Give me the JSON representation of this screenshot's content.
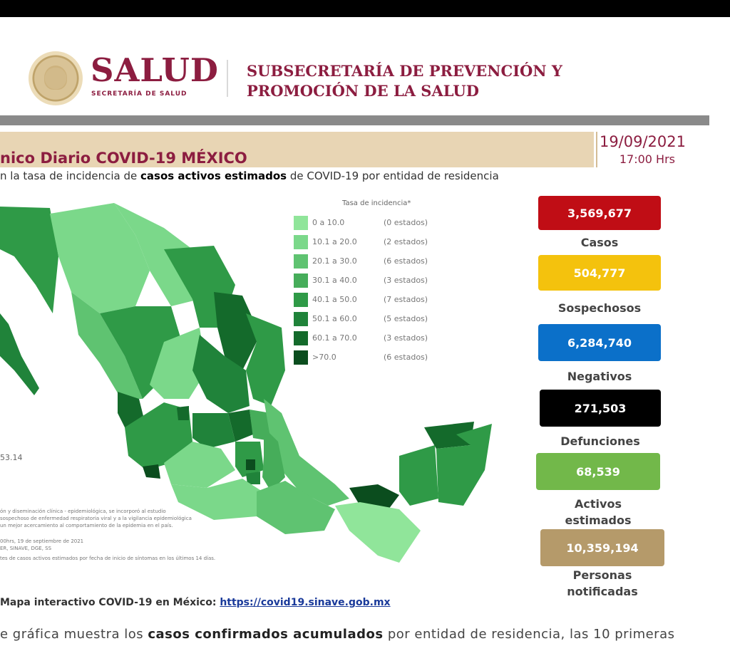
{
  "header": {
    "logo_text": "SALUD",
    "logo_subtext": "SECRETARÍA DE SALUD",
    "subsecretaria_line1": "SUBSECRETARÍA DE PREVENCIÓN Y",
    "subsecretaria_line2": "PROMOCIÓN DE LA SALUD"
  },
  "report": {
    "title": "nico Diario COVID-19 MÉXICO",
    "date": "19/09/2021",
    "time": "17:00 Hrs",
    "subtitle_pre": "n la tasa de incidencia de ",
    "subtitle_bold": "casos activos estimados",
    "subtitle_post": " de COVID-19 por entidad de residencia"
  },
  "legend": {
    "title": "Tasa de incidencia*",
    "items": [
      {
        "range": "0   a  10.0",
        "count": "(0 estados)",
        "color": "#90e59a"
      },
      {
        "range": "10.1 a 20.0",
        "count": "(2 estados)",
        "color": "#7bd88a"
      },
      {
        "range": "20.1 a 30.0",
        "count": "(6 estados)",
        "color": "#5fc371"
      },
      {
        "range": "30.1 a 40.0",
        "count": "(3 estados)",
        "color": "#46ad5a"
      },
      {
        "range": "40.1 a 50.0",
        "count": "(7 estados)",
        "color": "#2f9a47"
      },
      {
        "range": "50.1 a 60.0",
        "count": "(5 estados)",
        "color": "#20833a"
      },
      {
        "range": "60.1 a 70.0",
        "count": "(3 estados)",
        "color": "#146a2b"
      },
      {
        "range": ">70.0",
        "count": "(6 estados)",
        "color": "#0b4d1e"
      }
    ]
  },
  "map": {
    "national_rate": "53.14",
    "notes": [
      "ón y diseminación clínica - epidemiológica, se incorporó al estudio",
      "sospechoso de enfermedad respiratoria viral y a la vigilancia epidemiológica",
      "un mejor acercamiento al comportamiento de la epidemia en el país.",
      "00hrs, 19 de septiembre de 2021",
      "ER, SINAVE, DGE, SS",
      "tes de casos activos estimados por fecha de inicio de síntomas en los últimos 14 días."
    ]
  },
  "stats": [
    {
      "value": "3,569,677",
      "label": "Casos",
      "color": "#c00d15",
      "text_color": "#ffffff"
    },
    {
      "value": "504,777",
      "label": "Sospechosos",
      "color": "#f4c20d",
      "text_color": "#ffffff"
    },
    {
      "value": "6,284,740",
      "label": "Negativos",
      "color": "#0b70c9",
      "text_color": "#ffffff"
    },
    {
      "value": "271,503",
      "label": "Defunciones",
      "color": "#000000",
      "text_color": "#ffffff"
    },
    {
      "value": "68,539",
      "label": "Activos estimados",
      "color": "#72b84a",
      "text_color": "#ffffff"
    },
    {
      "value": "10,359,194",
      "label": "Personas notificadas",
      "color": "#b59a6a",
      "text_color": "#ffffff"
    }
  ],
  "footer": {
    "map_link_label": "Mapa interactivo COVID-19 en México: ",
    "map_link_url": "https://covid19.sinave.gob.mx",
    "bottom_pre": "e gráfica muestra los ",
    "bottom_bold": "casos confirmados acumulados",
    "bottom_post": " por entidad de residencia, las 10 primeras"
  }
}
